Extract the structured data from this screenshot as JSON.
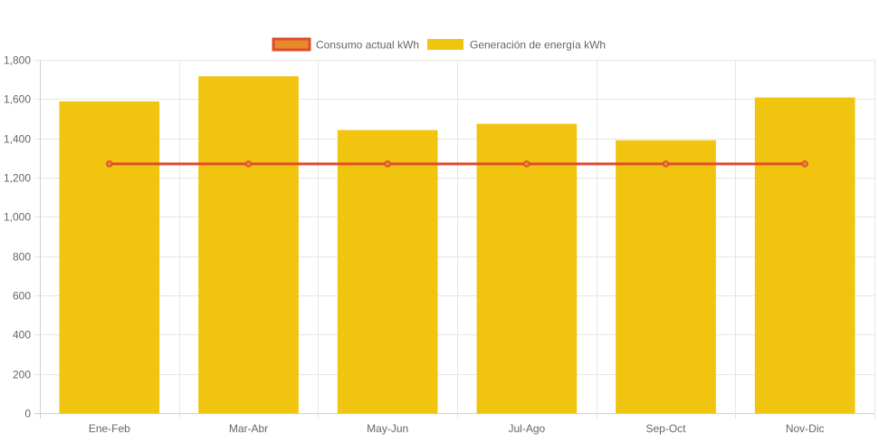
{
  "chart_data": {
    "type": "bar",
    "categories": [
      "Ene-Feb",
      "Mar-Abr",
      "May-Jun",
      "Jul-Ago",
      "Sep-Oct",
      "Nov-Dic"
    ],
    "series": [
      {
        "name": "Consumo actual kWh",
        "type": "line",
        "values": [
          1270,
          1270,
          1270,
          1270,
          1270,
          1270
        ],
        "color": "#e04b2f",
        "fill": "#e8892a"
      },
      {
        "name": "Generación de energía kWh",
        "type": "bar",
        "values": [
          1588,
          1716,
          1442,
          1474,
          1390,
          1608
        ],
        "color": "#f1c40f"
      }
    ],
    "ylim": [
      0,
      1800
    ],
    "yticks": [
      0,
      200,
      400,
      600,
      800,
      1000,
      1200,
      1400,
      1600,
      1800
    ],
    "ytick_labels": [
      "0",
      "200",
      "400",
      "600",
      "800",
      "1,000",
      "1,200",
      "1,400",
      "1,600",
      "1,800"
    ],
    "grid": true,
    "legend_position": "top-center"
  }
}
